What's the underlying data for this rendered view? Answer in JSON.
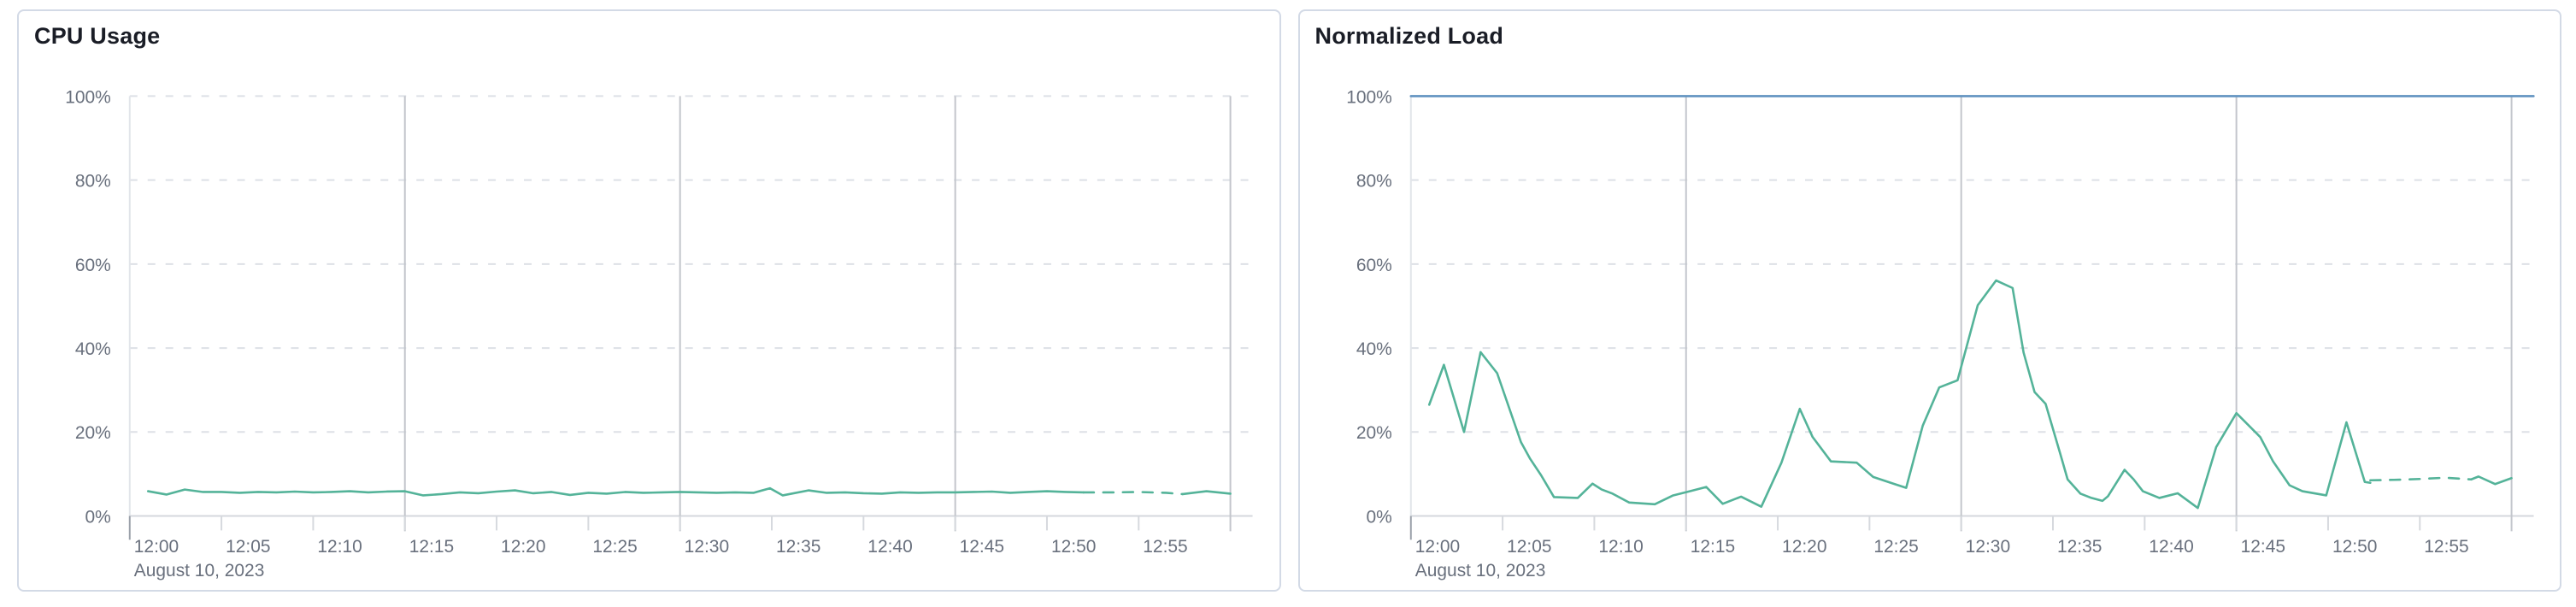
{
  "colors": {
    "series_green": "#54b399",
    "limit_blue": "#6092c0",
    "title_text": "#1a1d26",
    "axis_text": "#69707d"
  },
  "chart_data": [
    {
      "type": "line",
      "title": "CPU Usage",
      "x_secondary_label": "August 10, 2023",
      "x_ticks": [
        "12:00",
        "12:05",
        "12:10",
        "12:15",
        "12:20",
        "12:25",
        "12:30",
        "12:35",
        "12:40",
        "12:45",
        "12:50",
        "12:55"
      ],
      "y_ticks": [
        "0%",
        "20%",
        "40%",
        "60%",
        "80%",
        "100%"
      ],
      "ylim": [
        0,
        100
      ],
      "x_range_minutes": [
        0,
        61
      ],
      "grid": {
        "h_dashed_pct": [
          20,
          40,
          60,
          80,
          100
        ],
        "v_dark_minutes": [
          15,
          30,
          45,
          60
        ]
      },
      "series": [
        {
          "name": "cpu-usage",
          "color": "#54b399",
          "segments": [
            {
              "dash": false,
              "points": [
                [
                  1,
                  5.9
                ],
                [
                  2,
                  5.1
                ],
                [
                  3,
                  6.3
                ],
                [
                  4,
                  5.7
                ],
                [
                  5,
                  5.7
                ],
                [
                  6,
                  5.5
                ],
                [
                  7,
                  5.7
                ],
                [
                  8,
                  5.6
                ],
                [
                  9,
                  5.8
                ],
                [
                  10,
                  5.6
                ],
                [
                  11,
                  5.7
                ],
                [
                  12,
                  5.9
                ],
                [
                  13,
                  5.6
                ],
                [
                  14,
                  5.8
                ],
                [
                  15,
                  5.9
                ],
                [
                  16,
                  4.9
                ],
                [
                  17,
                  5.2
                ],
                [
                  18,
                  5.6
                ],
                [
                  19,
                  5.4
                ],
                [
                  20,
                  5.8
                ],
                [
                  21,
                  6.1
                ],
                [
                  22,
                  5.4
                ],
                [
                  23,
                  5.7
                ],
                [
                  24,
                  5.0
                ],
                [
                  25,
                  5.5
                ],
                [
                  26,
                  5.3
                ],
                [
                  27,
                  5.7
                ],
                [
                  28,
                  5.5
                ],
                [
                  29,
                  5.6
                ],
                [
                  30,
                  5.7
                ],
                [
                  31,
                  5.6
                ],
                [
                  32,
                  5.5
                ],
                [
                  33,
                  5.6
                ],
                [
                  34,
                  5.5
                ],
                [
                  34.9,
                  6.6
                ],
                [
                  35.6,
                  4.9
                ],
                [
                  37,
                  6.1
                ],
                [
                  38,
                  5.5
                ],
                [
                  39,
                  5.6
                ],
                [
                  40,
                  5.4
                ],
                [
                  41,
                  5.3
                ],
                [
                  42,
                  5.6
                ],
                [
                  43,
                  5.5
                ],
                [
                  44,
                  5.6
                ],
                [
                  45,
                  5.6
                ],
                [
                  46,
                  5.7
                ],
                [
                  47,
                  5.8
                ],
                [
                  48,
                  5.5
                ],
                [
                  49,
                  5.7
                ],
                [
                  50,
                  5.9
                ],
                [
                  51,
                  5.7
                ],
                [
                  52,
                  5.6
                ]
              ]
            },
            {
              "dash": true,
              "points": [
                [
                  52,
                  5.6
                ],
                [
                  53.5,
                  5.6
                ],
                [
                  55,
                  5.7
                ],
                [
                  56.5,
                  5.5
                ],
                [
                  57.4,
                  5.2
                ]
              ]
            },
            {
              "dash": false,
              "points": [
                [
                  57.4,
                  5.2
                ],
                [
                  58.7,
                  5.9
                ],
                [
                  60,
                  5.3
                ]
              ]
            }
          ]
        }
      ]
    },
    {
      "type": "line",
      "title": "Normalized Load",
      "x_secondary_label": "August 10, 2023",
      "x_ticks": [
        "12:00",
        "12:05",
        "12:10",
        "12:15",
        "12:20",
        "12:25",
        "12:30",
        "12:35",
        "12:40",
        "12:45",
        "12:50",
        "12:55"
      ],
      "y_ticks": [
        "0%",
        "20%",
        "40%",
        "60%",
        "80%",
        "100%"
      ],
      "ylim": [
        0,
        100
      ],
      "x_range_minutes": [
        0,
        61
      ],
      "grid": {
        "h_dashed_pct": [
          20,
          40,
          60,
          80
        ],
        "v_dark_minutes": [
          15,
          30,
          45,
          60
        ]
      },
      "series": [
        {
          "name": "limit-100pct",
          "color": "#6092c0",
          "segments": [
            {
              "dash": false,
              "points": [
                [
                  0,
                  100
                ],
                [
                  61.2,
                  100
                ]
              ]
            }
          ]
        },
        {
          "name": "normalized-load",
          "color": "#54b399",
          "segments": [
            {
              "dash": false,
              "points": [
                [
                  1,
                  26.5
                ],
                [
                  1.8,
                  36
                ],
                [
                  2.9,
                  20
                ],
                [
                  3.8,
                  39
                ],
                [
                  4.7,
                  34
                ],
                [
                  6,
                  17.6
                ],
                [
                  6.5,
                  13.6
                ],
                [
                  7.1,
                  9.7
                ],
                [
                  7.8,
                  4.5
                ],
                [
                  9.1,
                  4.3
                ],
                [
                  9.9,
                  7.7
                ],
                [
                  10.4,
                  6.3
                ],
                [
                  11,
                  5.3
                ],
                [
                  11.9,
                  3.2
                ],
                [
                  13.3,
                  2.8
                ],
                [
                  14.3,
                  4.9
                ],
                [
                  15.2,
                  5.9
                ],
                [
                  16.1,
                  6.9
                ],
                [
                  17,
                  2.9
                ],
                [
                  18,
                  4.6
                ],
                [
                  19.1,
                  2.2
                ],
                [
                  20.2,
                  12.7
                ],
                [
                  21.2,
                  25.5
                ],
                [
                  21.9,
                  18.8
                ],
                [
                  22.9,
                  13
                ],
                [
                  24.3,
                  12.7
                ],
                [
                  25.2,
                  9.3
                ],
                [
                  26.3,
                  7.7
                ],
                [
                  27,
                  6.7
                ],
                [
                  27.9,
                  21.5
                ],
                [
                  28.8,
                  30.6
                ],
                [
                  29.8,
                  32.3
                ],
                [
                  30.9,
                  50.2
                ],
                [
                  31.9,
                  56.1
                ],
                [
                  32.8,
                  54.3
                ],
                [
                  33.4,
                  38.9
                ],
                [
                  34,
                  29.5
                ],
                [
                  34.6,
                  26.7
                ],
                [
                  35.4,
                  14.8
                ],
                [
                  35.8,
                  8.7
                ],
                [
                  36.5,
                  5.3
                ],
                [
                  37.1,
                  4.3
                ],
                [
                  37.7,
                  3.6
                ],
                [
                  38,
                  4.7
                ],
                [
                  38.9,
                  11
                ],
                [
                  39.4,
                  8.7
                ],
                [
                  39.9,
                  5.9
                ],
                [
                  40.8,
                  4.3
                ],
                [
                  41.8,
                  5.4
                ],
                [
                  42.9,
                  1.9
                ],
                [
                  43.9,
                  16.4
                ],
                [
                  45,
                  24.5
                ],
                [
                  46.3,
                  18.8
                ],
                [
                  47,
                  13
                ],
                [
                  47.9,
                  7.3
                ],
                [
                  48.6,
                  5.9
                ],
                [
                  49.9,
                  4.9
                ],
                [
                  51,
                  22.3
                ],
                [
                  52,
                  8.1
                ],
                [
                  52.3,
                  7.9
                ]
              ]
            },
            {
              "dash": true,
              "points": [
                [
                  52.3,
                  8.5
                ],
                [
                  53.6,
                  8.6
                ],
                [
                  55,
                  8.8
                ],
                [
                  56.4,
                  9.1
                ],
                [
                  57.8,
                  8.7
                ]
              ]
            },
            {
              "dash": false,
              "points": [
                [
                  57.8,
                  8.7
                ],
                [
                  58.2,
                  9.4
                ],
                [
                  59.1,
                  7.6
                ],
                [
                  60,
                  9
                ]
              ]
            }
          ]
        }
      ]
    }
  ]
}
